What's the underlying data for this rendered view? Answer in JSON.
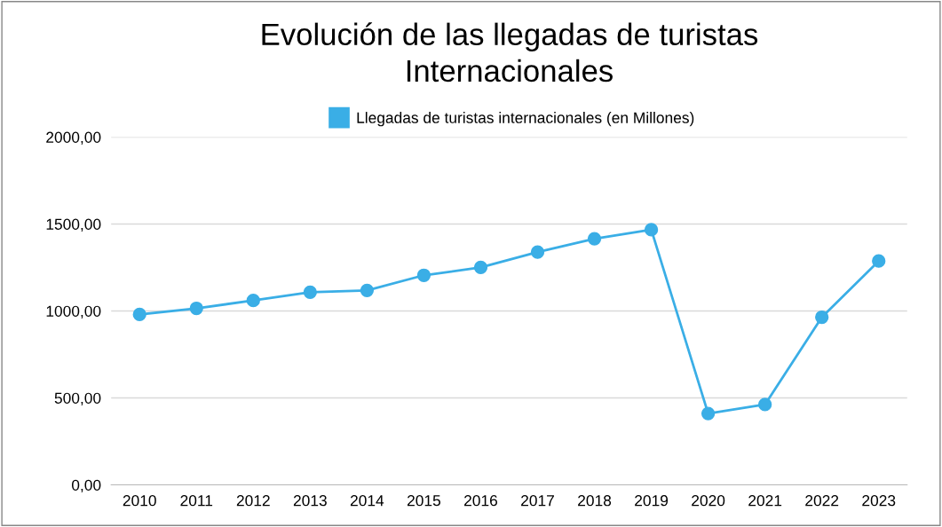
{
  "chart_data": {
    "type": "line",
    "title": "Evolución de las llegadas de turistas\nInternacionales",
    "categories": [
      "2010",
      "2011",
      "2012",
      "2013",
      "2014",
      "2015",
      "2016",
      "2017",
      "2018",
      "2019",
      "2020",
      "2021",
      "2022",
      "2023"
    ],
    "series": [
      {
        "name": "Llegadas de turistas internacionales (en Millones)",
        "color": "#3aaee6",
        "values": [
          980,
          1015,
          1060,
          1108,
          1118,
          1205,
          1250,
          1338,
          1415,
          1467,
          410,
          462,
          964,
          1287
        ]
      }
    ],
    "ylim": [
      0,
      2000
    ],
    "yticks": [
      {
        "value": 0,
        "label": "0,00"
      },
      {
        "value": 500,
        "label": "500,00"
      },
      {
        "value": 1000,
        "label": "1000,00"
      },
      {
        "value": 1500,
        "label": "1500,00"
      },
      {
        "value": 2000,
        "label": "2000,00"
      }
    ],
    "grid": "y",
    "legend": "top",
    "marker": "circle",
    "line_style": "solid"
  }
}
